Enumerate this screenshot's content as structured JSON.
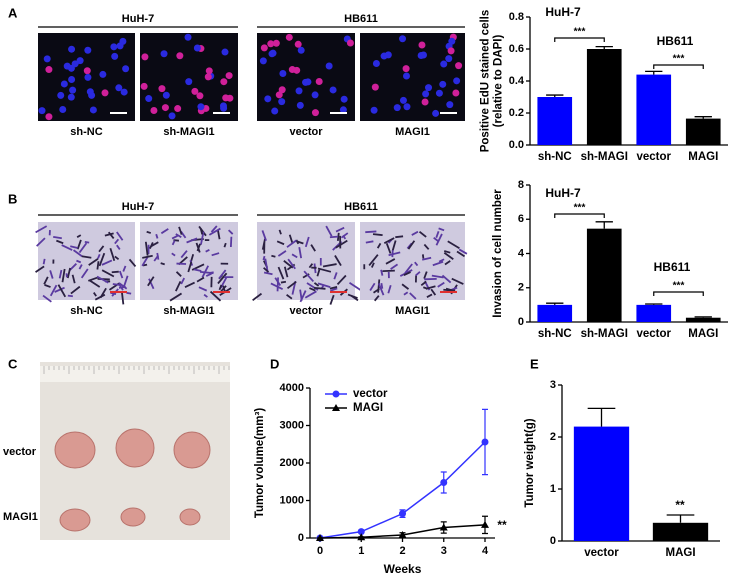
{
  "figure": {
    "panels": [
      {
        "label": "A",
        "groups": [
          {
            "title": "HuH-7",
            "images": [
              "sh-NC",
              "sh-MAGI1"
            ]
          },
          {
            "title": "HB611",
            "images": [
              "vector",
              "MAGI1"
            ]
          }
        ]
      },
      {
        "label": "B",
        "groups": [
          {
            "title": "HuH-7",
            "images": [
              "sh-NC",
              "sh-MAGI1"
            ]
          },
          {
            "title": "HB611",
            "images": [
              "vector",
              "MAGI1"
            ]
          }
        ]
      },
      {
        "label": "C",
        "rows": [
          "vector",
          "MAGI1"
        ]
      },
      {
        "label": "D"
      },
      {
        "label": "E"
      }
    ]
  },
  "chart_data": [
    {
      "type": "bar",
      "ylabel": [
        "Positive EdU stained cells",
        "(relative to DAPI)"
      ],
      "categories": [
        "sh-NC",
        "sh-MAGI",
        "vector",
        "MAGI"
      ],
      "values": [
        0.3,
        0.6,
        0.44,
        0.165
      ],
      "errors": [
        0.012,
        0.015,
        0.02,
        0.012
      ],
      "colors": [
        "#0000ff",
        "#000000",
        "#0000ff",
        "#000000"
      ],
      "ylim": [
        0,
        0.8
      ],
      "yticks": [
        {
          "value": 0,
          "label": "0.0"
        },
        {
          "value": 0.2,
          "label": "0.2"
        },
        {
          "value": 0.4,
          "label": "0.4"
        },
        {
          "value": 0.6,
          "label": "0.6"
        },
        {
          "value": 0.8,
          "label": "0.8"
        }
      ],
      "annotations": [
        "HuH-7",
        "***",
        "HB611",
        "***"
      ]
    },
    {
      "type": "bar",
      "ylabel": [
        "Invasion of cell number"
      ],
      "categories": [
        "sh-NC",
        "sh-MAGI",
        "vector",
        "MAGI"
      ],
      "values": [
        1.0,
        5.45,
        1.0,
        0.25
      ],
      "errors": [
        0.1,
        0.4,
        0.05,
        0.05
      ],
      "colors": [
        "#0000ff",
        "#000000",
        "#0000ff",
        "#000000"
      ],
      "ylim": [
        0,
        8
      ],
      "yticks": [
        0,
        2,
        4,
        6,
        8
      ],
      "annotations": [
        "HuH-7",
        "***",
        "HB611",
        "***"
      ]
    },
    {
      "type": "line",
      "xlabel": "Weeks",
      "ylabel": [
        "Tumor volume(mm³)"
      ],
      "x": [
        0,
        1,
        2,
        3,
        4
      ],
      "series": [
        {
          "name": "vector",
          "color": "#3333ff",
          "marker": "circle",
          "values": [
            0,
            170,
            650,
            1480,
            2560
          ],
          "errors": [
            0,
            30,
            100,
            280,
            870
          ]
        },
        {
          "name": "MAGI",
          "color": "#000000",
          "marker": "triangle",
          "values": [
            0,
            20,
            80,
            280,
            350
          ],
          "errors": [
            0,
            10,
            60,
            150,
            230
          ]
        }
      ],
      "xlim": [
        0,
        4
      ],
      "xticks": [
        0,
        1,
        2,
        3,
        4
      ],
      "ylim": [
        0,
        4000
      ],
      "yticks": [
        0,
        1000,
        2000,
        3000,
        4000
      ],
      "legend": "top-left",
      "annotations": [
        "**"
      ]
    },
    {
      "type": "bar",
      "ylabel": [
        "Tumor weight(g)"
      ],
      "categories": [
        "vector",
        "MAGI"
      ],
      "values": [
        2.2,
        0.35
      ],
      "errors": [
        0.35,
        0.15
      ],
      "colors": [
        "#0000ff",
        "#000000"
      ],
      "ylim": [
        0,
        3
      ],
      "yticks": [
        0,
        1,
        2,
        3
      ],
      "annotations": [
        "**"
      ]
    }
  ]
}
